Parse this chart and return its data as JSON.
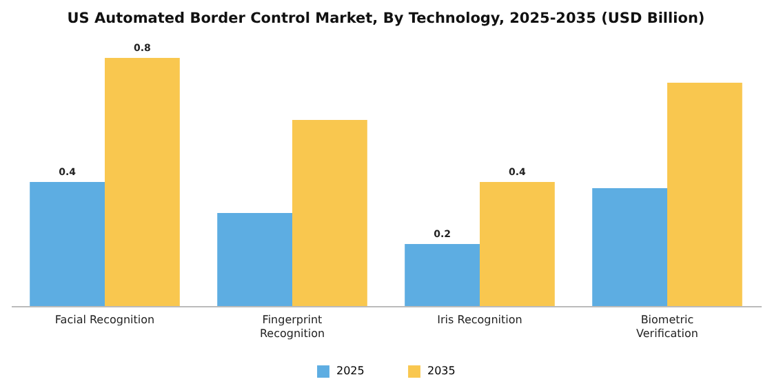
{
  "chart_data": {
    "type": "bar",
    "title": "US Automated Border Control Market, By Technology, 2025-2035 (USD Billion)",
    "categories": [
      "Facial Recognition",
      "Fingerprint Recognition",
      "Iris Recognition",
      "Biometric Verification"
    ],
    "series": [
      {
        "name": "2025",
        "color": "#5dade2",
        "values": [
          0.4,
          0.3,
          0.2,
          0.38
        ],
        "value_labels": [
          "0.4",
          null,
          "0.2",
          null
        ]
      },
      {
        "name": "2035",
        "color": "#f9c74f",
        "values": [
          0.8,
          0.6,
          0.4,
          0.72
        ],
        "value_labels": [
          "0.8",
          null,
          "0.4",
          null
        ]
      }
    ],
    "legend": "bottom"
  }
}
